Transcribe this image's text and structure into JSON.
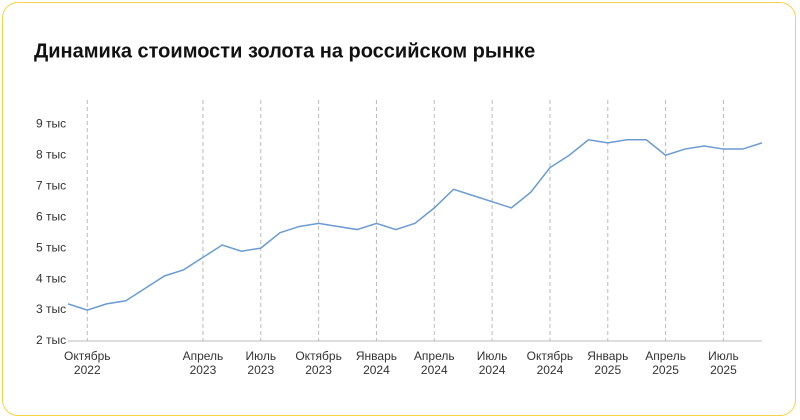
{
  "chart_data": {
    "type": "line",
    "title": "Динамика стоимости золота на российском рынке",
    "x": [
      "2022-09",
      "2022-10",
      "2022-11",
      "2022-12",
      "2023-01",
      "2023-02",
      "2023-03",
      "2023-04",
      "2023-05",
      "2023-06",
      "2023-07",
      "2023-08",
      "2023-09",
      "2023-10",
      "2023-11",
      "2023-12",
      "2024-01",
      "2024-02",
      "2024-03",
      "2024-04",
      "2024-05",
      "2024-06",
      "2024-07",
      "2024-08",
      "2024-09",
      "2024-10",
      "2024-11",
      "2024-12",
      "2025-01",
      "2025-02",
      "2025-03",
      "2025-04",
      "2025-05",
      "2025-06",
      "2025-07",
      "2025-08",
      "2025-09"
    ],
    "series": [
      {
        "color": "#6b9bd1",
        "values": [
          3200,
          3000,
          3200,
          3300,
          3700,
          4100,
          4300,
          4700,
          5100,
          4900,
          5000,
          5500,
          5700,
          5800,
          5700,
          5600,
          5800,
          5600,
          5800,
          6300,
          6900,
          6700,
          6500,
          6300,
          6800,
          7600,
          8000,
          8500,
          8400,
          8500,
          8500,
          8000,
          8200,
          8300,
          8200,
          8200,
          8400
        ]
      }
    ],
    "xlim": [
      "2022-09",
      "2025-09"
    ],
    "xticks": [
      {
        "value": "2022-10",
        "label": [
          "Октябрь",
          "2022"
        ]
      },
      {
        "value": "2023-04",
        "label": [
          "Апрель",
          "2023"
        ]
      },
      {
        "value": "2023-07",
        "label": [
          "Июль",
          "2023"
        ]
      },
      {
        "value": "2023-10",
        "label": [
          "Октябрь",
          "2023"
        ]
      },
      {
        "value": "2024-01",
        "label": [
          "Январь",
          "2024"
        ]
      },
      {
        "value": "2024-04",
        "label": [
          "Апрель",
          "2024"
        ]
      },
      {
        "value": "2024-07",
        "label": [
          "Июль",
          "2024"
        ]
      },
      {
        "value": "2024-10",
        "label": [
          "Октябрь",
          "2024"
        ]
      },
      {
        "value": "2025-01",
        "label": [
          "Январь",
          "2025"
        ]
      },
      {
        "value": "2025-04",
        "label": [
          "Апрель",
          "2025"
        ]
      },
      {
        "value": "2025-07",
        "label": [
          "Июль",
          "2025"
        ]
      }
    ],
    "ylim": [
      2000,
      9300
    ],
    "yticks": [
      {
        "value": 2000,
        "label": "2 тыс"
      },
      {
        "value": 3000,
        "label": "3 тыс"
      },
      {
        "value": 4000,
        "label": "4 тыс"
      },
      {
        "value": 5000,
        "label": "5 тыс"
      },
      {
        "value": 6000,
        "label": "6 тыс"
      },
      {
        "value": 7000,
        "label": "7 тыс"
      },
      {
        "value": 8000,
        "label": "8 тыс"
      },
      {
        "value": 9000,
        "label": "9 тыс"
      }
    ],
    "grid": true
  }
}
